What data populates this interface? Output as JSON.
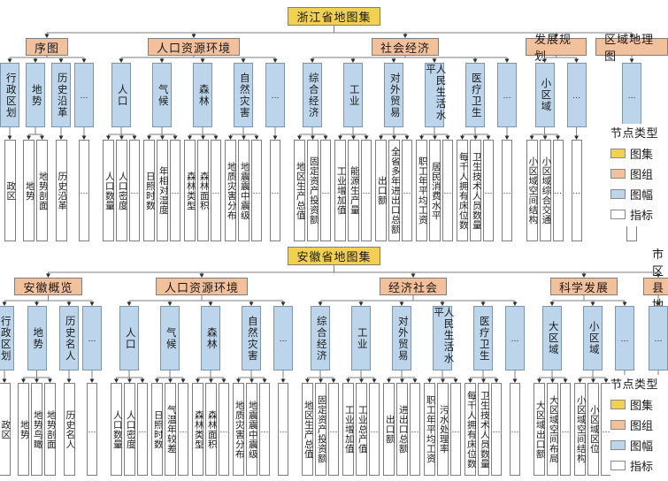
{
  "legend": {
    "title": "节点类型",
    "items": [
      {
        "label": "图集",
        "type": "atlas",
        "color": "#f1d052"
      },
      {
        "label": "图组",
        "type": "group",
        "color": "#f3c09c"
      },
      {
        "label": "图幅",
        "type": "sheet",
        "color": "#bcd5ea"
      },
      {
        "label": "指标",
        "type": "indicator",
        "color": "#ffffff"
      }
    ]
  },
  "colors": {
    "atlas": "#f1d052",
    "group": "#f3c09c",
    "sheet": "#bcd5ea",
    "indicator": "#ffffff",
    "line": "#7e7e7e",
    "arrow": "#2b2b2b",
    "border": "#7e7e7e"
  },
  "trees": [
    {
      "title": "浙江省地图集",
      "groups": [
        {
          "label": "序图",
          "sheets": [
            {
              "label": "行政区划",
              "indicators": [
                "政区"
              ]
            },
            {
              "label": "地势",
              "indicators": [
                "地势",
                "地势剖面"
              ]
            },
            {
              "label": "历史沿革",
              "indicators": [
                "历史沿革"
              ]
            },
            {
              "label": "…",
              "indicators": [
                "…"
              ]
            }
          ]
        },
        {
          "label": "人口资源环境",
          "sheets": [
            {
              "label": "人口",
              "indicators": [
                "人口数量",
                "人口密度",
                "…"
              ]
            },
            {
              "label": "气候",
              "indicators": [
                "日照时数",
                "年相对湿度",
                "…"
              ]
            },
            {
              "label": "森林",
              "indicators": [
                "森林类型",
                "森林面积",
                "…"
              ]
            },
            {
              "label": "自然灾害",
              "indicators": [
                "地质灾害分布",
                "地震震中震级",
                "…"
              ]
            },
            {
              "label": "…",
              "indicators": [
                "…"
              ]
            }
          ]
        },
        {
          "label": "社会经济",
          "sheets": [
            {
              "label": "综合经济",
              "indicators": [
                "地区生产总值",
                "固定资产投资额",
                "…"
              ]
            },
            {
              "label": "工业",
              "indicators": [
                "工业增加值",
                "能源生产量",
                "…"
              ]
            },
            {
              "label": "对外贸易",
              "indicators": [
                "出口额",
                "全省多年进出口总额",
                "…"
              ]
            },
            {
              "label": "人民生活水平",
              "indicators": [
                "职工年平均工资",
                "居民消费水平",
                "…"
              ]
            },
            {
              "label": "医疗卫生",
              "indicators": [
                "每千人拥有床位数",
                "卫生技术人员数量",
                "…"
              ]
            },
            {
              "label": "…",
              "indicators": [
                "…"
              ]
            }
          ]
        },
        {
          "label": "发展规划",
          "sheets": [
            {
              "label": "小区域",
              "indicators": [
                "小区域空间结构",
                "小区域综合交通",
                "…"
              ]
            },
            {
              "label": "…",
              "indicators": [
                "…"
              ]
            }
          ]
        },
        {
          "label": "区域地理图",
          "sheets": [
            {
              "label": "…",
              "indicators": [
                "…"
              ]
            }
          ]
        }
      ]
    },
    {
      "title": "安徽省地图集",
      "groups": [
        {
          "label": "安徽概览",
          "sheets": [
            {
              "label": "行政区划",
              "indicators": [
                "政区"
              ]
            },
            {
              "label": "地势",
              "indicators": [
                "地势",
                "地势鸟瞰",
                "地势剖面"
              ]
            },
            {
              "label": "历史名人",
              "indicators": [
                "历史名人"
              ]
            },
            {
              "label": "…",
              "indicators": [
                "…"
              ]
            }
          ]
        },
        {
          "label": "人口资源环境",
          "sheets": [
            {
              "label": "人口",
              "indicators": [
                "人口数量",
                "人口密度",
                "…"
              ]
            },
            {
              "label": "气候",
              "indicators": [
                "日照时数",
                "气温年较差",
                "…"
              ]
            },
            {
              "label": "森林",
              "indicators": [
                "森林类型",
                "森林面积",
                "…"
              ]
            },
            {
              "label": "自然灾害",
              "indicators": [
                "地质灾害分布",
                "地震震中震级",
                "…"
              ]
            },
            {
              "label": "…",
              "indicators": [
                "…"
              ]
            }
          ]
        },
        {
          "label": "经济社会",
          "sheets": [
            {
              "label": "综合经济",
              "indicators": [
                "地区生产总值",
                "固定资产投资额",
                "…"
              ]
            },
            {
              "label": "工业",
              "indicators": [
                "工业增加值",
                "工业总产值",
                "…"
              ]
            },
            {
              "label": "对外贸易",
              "indicators": [
                "出口额",
                "进出口总额",
                "…"
              ]
            },
            {
              "label": "人民生活水平",
              "indicators": [
                "职工年平均工资",
                "污水处理率",
                "…"
              ]
            },
            {
              "label": "医疗卫生",
              "indicators": [
                "每千人拥有床位数",
                "卫生技术人员数量",
                "…"
              ]
            },
            {
              "label": "…",
              "indicators": [
                "…"
              ]
            }
          ]
        },
        {
          "label": "科学发展",
          "sheets": [
            {
              "label": "大区域",
              "indicators": [
                "大区域出口额",
                "大区域空间布局",
                "…"
              ]
            },
            {
              "label": "小区域",
              "indicators": [
                "小区域空间结构",
                "小区域区位",
                "…"
              ]
            },
            {
              "label": "…",
              "indicators": [
                "…"
              ]
            }
          ]
        },
        {
          "label": "市区县地图",
          "sheets": [
            {
              "label": "…",
              "indicators": [
                "…"
              ]
            }
          ]
        }
      ]
    }
  ]
}
